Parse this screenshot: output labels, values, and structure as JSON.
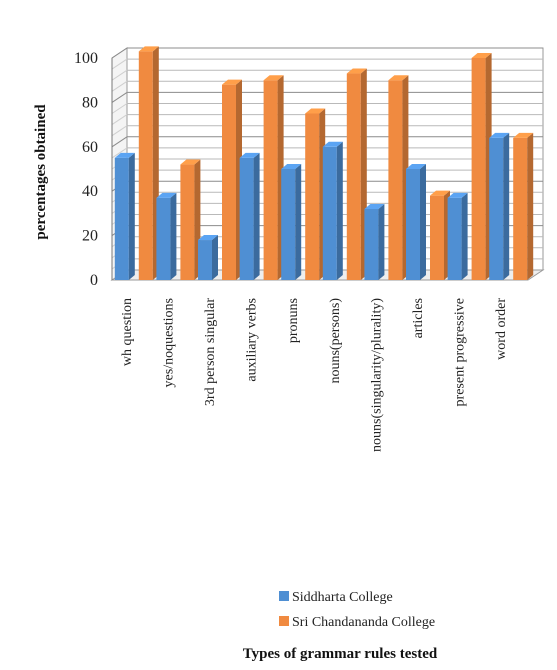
{
  "chart_data": {
    "type": "bar",
    "title": "",
    "xlabel": "Types of grammar rules tested",
    "ylabel": "percentages obtained",
    "ylim": [
      0,
      100
    ],
    "yticks": [
      "0",
      "20",
      "40",
      "60",
      "80",
      "100"
    ],
    "grid": true,
    "legend_position": "bottom-right",
    "categories": [
      "wh question",
      "yes/noquestions",
      "3rd person singular",
      "auxiliary verbs",
      "pronuns",
      "nouns(persons)",
      "nouns(singularity/plurality)",
      "articles",
      "present progressive",
      "word order"
    ],
    "series": [
      {
        "name": "Siddharta College",
        "color": "#4f8fd3",
        "values": [
          55,
          37,
          18,
          55,
          50,
          60,
          32,
          50,
          37,
          64
        ]
      },
      {
        "name": "Sri Chandananda College",
        "color": "#f08a40",
        "values": [
          103,
          52,
          88,
          90,
          75,
          93,
          90,
          38,
          100,
          64
        ]
      }
    ]
  }
}
